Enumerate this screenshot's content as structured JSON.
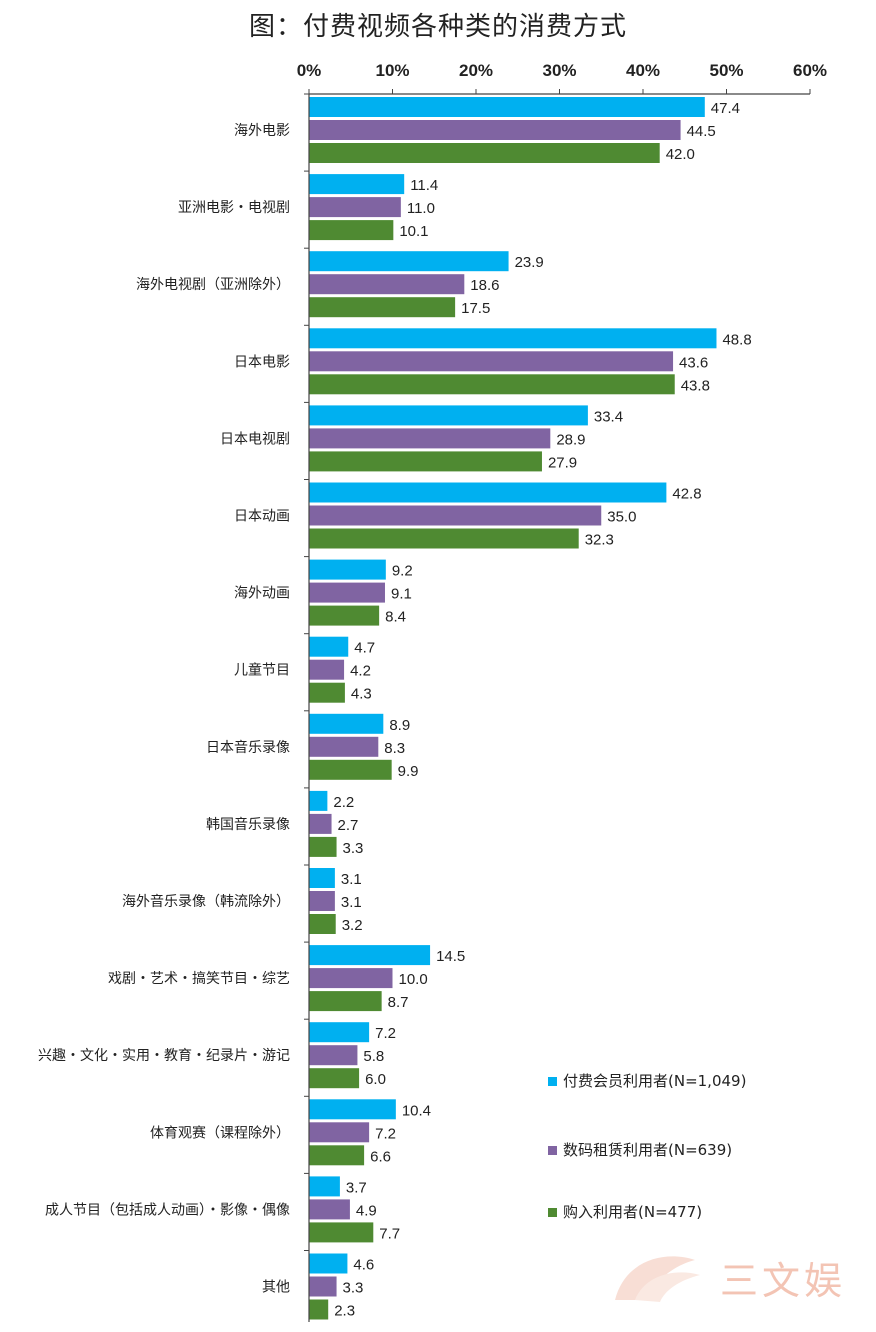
{
  "chart_data": {
    "type": "bar",
    "orientation": "horizontal",
    "title": "图：付费视频各种类的消费方式",
    "xlim": [
      0,
      60
    ],
    "x_ticks": [
      "0%",
      "10%",
      "20%",
      "30%",
      "40%",
      "50%",
      "60%"
    ],
    "tick_values": [
      0,
      10,
      20,
      30,
      40,
      50,
      60
    ],
    "categories": [
      "海外电影",
      "亚洲电影・电视剧",
      "海外电视剧（亚洲除外）",
      "日本电影",
      "日本电视剧",
      "日本动画",
      "海外动画",
      "儿童节目",
      "日本音乐录像",
      "韩国音乐录像",
      "海外音乐录像（韩流除外）",
      "戏剧・艺术・搞笑节目・综艺",
      "兴趣・文化・实用・教育・纪录片・游记",
      "体育观赛（课程除外）",
      "成人节目（包括成人动画）・影像・偶像",
      "其他"
    ],
    "series": [
      {
        "name": "付费会员利用者(N=1,049)",
        "color": "#00b0f0",
        "values": [
          47.4,
          11.4,
          23.9,
          48.8,
          33.4,
          42.8,
          9.2,
          4.7,
          8.9,
          2.2,
          3.1,
          14.5,
          7.2,
          10.4,
          3.7,
          4.6
        ]
      },
      {
        "name": "数码租赁利用者(N=639)",
        "color": "#8064a2",
        "values": [
          44.5,
          11.0,
          18.6,
          43.6,
          28.9,
          35.0,
          9.1,
          4.2,
          8.3,
          2.7,
          3.1,
          10.0,
          5.8,
          7.2,
          4.9,
          3.3
        ]
      },
      {
        "name": "购入利用者(N=477)",
        "color": "#4f8a32",
        "values": [
          42.0,
          10.1,
          17.5,
          43.8,
          27.9,
          32.3,
          8.4,
          4.3,
          9.9,
          3.3,
          3.2,
          8.7,
          6.0,
          6.6,
          7.7,
          2.3
        ]
      }
    ],
    "legend_position": "bottom-right"
  },
  "watermark": {
    "text": "三文娱",
    "color": "#f3c4b4"
  }
}
